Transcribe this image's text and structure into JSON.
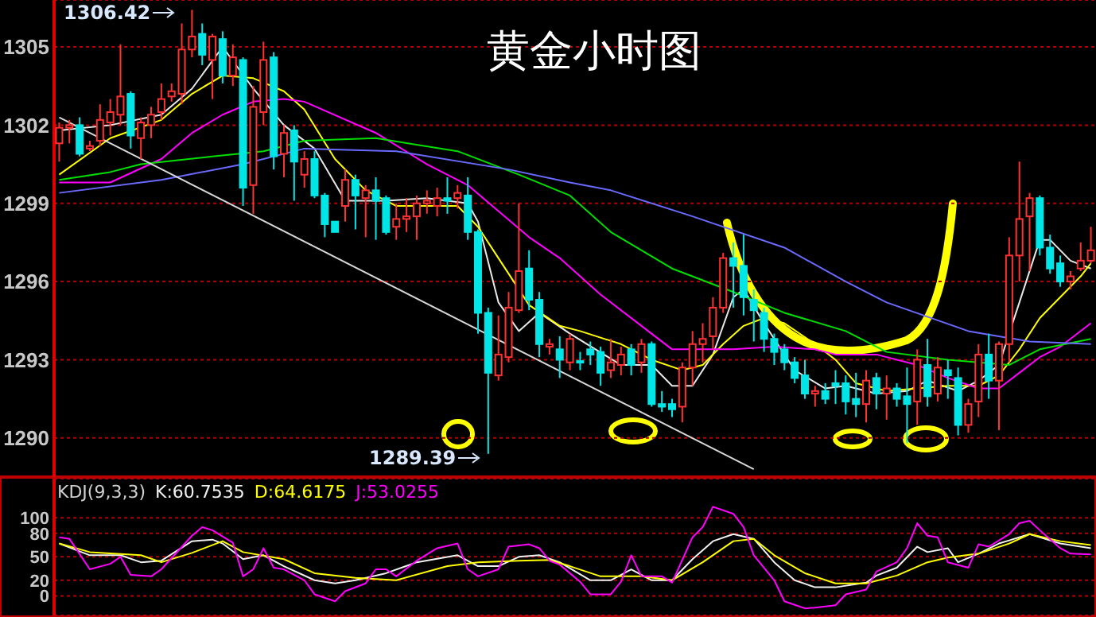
{
  "chart_data": [
    {
      "type": "candlestick",
      "title": "黄金小时图",
      "categories": [
        null,
        null,
        null,
        null,
        null,
        null,
        null,
        null,
        null,
        null,
        null,
        null,
        null,
        null,
        null,
        null,
        null,
        null,
        null,
        null,
        null,
        null,
        null,
        null,
        null,
        null,
        null,
        null,
        null,
        null,
        null,
        null,
        null,
        null,
        null,
        null,
        null,
        null,
        null,
        null,
        null,
        null,
        null,
        null,
        null,
        null,
        null,
        null,
        null,
        null,
        null,
        null,
        null,
        null,
        null,
        null,
        null,
        null,
        null,
        null,
        null,
        null,
        null,
        null,
        null,
        null,
        null,
        null,
        null,
        null,
        null,
        null,
        null,
        null,
        null,
        null,
        null,
        null,
        null,
        null,
        null,
        null,
        null,
        null,
        null,
        null,
        null,
        null,
        null,
        null,
        null,
        null,
        null,
        null,
        null,
        null,
        null,
        null,
        null,
        null,
        null,
        null
      ],
      "ohlc": [
        [
          1301.3,
          1302.1,
          1300.6,
          1301.9
        ],
        [
          1301.9,
          1302.2,
          1301.3,
          1302.0
        ],
        [
          1302.0,
          1302.3,
          1300.8,
          1300.9
        ],
        [
          1301.1,
          1301.4,
          1301.0,
          1301.2
        ],
        [
          1301.4,
          1302.8,
          1301.2,
          1302.2
        ],
        [
          1302.1,
          1303.0,
          1301.6,
          1302.5
        ],
        [
          1302.4,
          1305.1,
          1302.0,
          1303.1
        ],
        [
          1303.2,
          1303.3,
          1301.1,
          1301.6
        ],
        [
          1301.5,
          1302.3,
          1300.7,
          1302.1
        ],
        [
          1302.0,
          1302.7,
          1301.5,
          1302.4
        ],
        [
          1302.5,
          1303.6,
          1302.2,
          1303.0
        ],
        [
          1303.1,
          1303.6,
          1302.9,
          1303.3
        ],
        [
          1303.2,
          1305.9,
          1302.8,
          1304.9
        ],
        [
          1304.9,
          1306.42,
          1304.6,
          1305.4
        ],
        [
          1305.5,
          1305.9,
          1304.3,
          1304.7
        ],
        [
          1304.5,
          1305.5,
          1303.0,
          1305.4
        ],
        [
          1305.3,
          1305.6,
          1303.6,
          1303.9
        ],
        [
          1303.9,
          1305.1,
          1303.5,
          1304.6
        ],
        [
          1304.5,
          1304.6,
          1298.9,
          1299.6
        ],
        [
          1299.7,
          1303.5,
          1298.6,
          1302.7
        ],
        [
          1302.5,
          1305.2,
          1302.0,
          1304.5
        ],
        [
          1304.6,
          1304.8,
          1300.3,
          1300.8
        ],
        [
          1300.9,
          1302.0,
          1300.0,
          1301.7
        ],
        [
          1301.8,
          1302.0,
          1299.1,
          1300.6
        ],
        [
          1300.1,
          1301.0,
          1299.6,
          1300.7
        ],
        [
          1300.7,
          1301.0,
          1299.2,
          1299.3
        ],
        [
          1299.3,
          1299.4,
          1297.7,
          1298.2
        ],
        [
          1298.3,
          1298.3,
          1297.9,
          1297.9
        ],
        [
          1298.9,
          1300.3,
          1298.3,
          1299.9
        ],
        [
          1299.9,
          1300.1,
          1298.0,
          1299.3
        ],
        [
          1299.2,
          1299.7,
          1297.7,
          1299.5
        ],
        [
          1299.5,
          1300.0,
          1297.6,
          1299.1
        ],
        [
          1299.2,
          1299.3,
          1297.8,
          1297.9
        ],
        [
          1298.1,
          1299.0,
          1297.6,
          1298.4
        ],
        [
          1298.4,
          1299.2,
          1297.9,
          1298.5
        ],
        [
          1298.5,
          1299.3,
          1297.6,
          1299.0
        ],
        [
          1299.0,
          1299.5,
          1298.6,
          1299.1
        ],
        [
          1298.9,
          1299.6,
          1298.5,
          1299.2
        ],
        [
          1299.2,
          1300.0,
          1298.6,
          1299.1
        ],
        [
          1299.2,
          1299.7,
          1298.8,
          1299.4
        ],
        [
          1299.3,
          1300.0,
          1297.6,
          1297.9
        ],
        [
          1297.9,
          1298.0,
          1294.0,
          1294.8
        ],
        [
          1294.8,
          1295.0,
          1289.39,
          1292.5
        ],
        [
          1292.4,
          1294.7,
          1292.2,
          1293.2
        ],
        [
          1293.1,
          1295.6,
          1292.9,
          1295.0
        ],
        [
          1294.9,
          1299.0,
          1294.8,
          1296.4
        ],
        [
          1296.5,
          1297.2,
          1294.9,
          1295.3
        ],
        [
          1295.3,
          1295.6,
          1293.1,
          1293.6
        ],
        [
          1293.5,
          1293.8,
          1293.2,
          1293.6
        ],
        [
          1293.4,
          1293.9,
          1292.3,
          1293.0
        ],
        [
          1292.9,
          1294.0,
          1292.6,
          1293.8
        ],
        [
          1292.95,
          1293.3,
          1292.6,
          1292.9
        ],
        [
          1293.4,
          1293.7,
          1292.8,
          1293.2
        ],
        [
          1293.3,
          1293.5,
          1292.0,
          1292.5
        ],
        [
          1292.6,
          1293.8,
          1292.3,
          1292.9
        ],
        [
          1292.8,
          1293.5,
          1292.4,
          1293.2
        ],
        [
          1293.4,
          1293.6,
          1292.4,
          1292.8
        ],
        [
          1292.9,
          1293.8,
          1292.5,
          1293.6
        ],
        [
          1293.6,
          1293.7,
          1291.2,
          1291.3
        ],
        [
          1291.3,
          1291.8,
          1291.0,
          1291.2
        ],
        [
          1291.3,
          1291.5,
          1290.8,
          1291.1
        ],
        [
          1291.2,
          1292.9,
          1290.6,
          1292.7
        ],
        [
          1292.7,
          1294.1,
          1292.0,
          1293.6
        ],
        [
          1293.6,
          1294.4,
          1292.9,
          1293.8
        ],
        [
          1293.9,
          1295.4,
          1293.4,
          1295.0
        ],
        [
          1295.0,
          1297.1,
          1294.8,
          1296.9
        ],
        [
          1296.9,
          1297.5,
          1295.0,
          1296.6
        ],
        [
          1296.6,
          1297.8,
          1294.7,
          1295.4
        ],
        [
          1295.3,
          1295.7,
          1293.7,
          1294.9
        ],
        [
          1294.8,
          1295.0,
          1293.3,
          1293.8
        ],
        [
          1293.8,
          1294.0,
          1292.8,
          1293.3
        ],
        [
          1293.4,
          1293.6,
          1292.6,
          1292.9
        ],
        [
          1292.9,
          1293.1,
          1292.1,
          1292.3
        ],
        [
          1292.4,
          1293.0,
          1291.5,
          1291.7
        ],
        [
          1291.7,
          1292.0,
          1291.2,
          1291.8
        ],
        [
          1291.8,
          1292.1,
          1291.3,
          1291.5
        ],
        [
          1292.1,
          1292.6,
          1291.3,
          1292.0
        ],
        [
          1292.1,
          1292.4,
          1290.9,
          1291.4
        ],
        [
          1291.5,
          1292.5,
          1290.8,
          1291.3
        ],
        [
          1291.3,
          1292.6,
          1290.6,
          1292.2
        ],
        [
          1292.3,
          1292.5,
          1291.1,
          1291.7
        ],
        [
          1291.7,
          1292.4,
          1290.7,
          1291.9
        ],
        [
          1291.9,
          1292.1,
          1291.2,
          1291.5
        ],
        [
          1291.6,
          1292.7,
          1289.8,
          1291.3
        ],
        [
          1291.4,
          1293.4,
          1290.5,
          1293.0
        ],
        [
          1292.8,
          1293.8,
          1291.2,
          1291.6
        ],
        [
          1291.7,
          1293.1,
          1291.4,
          1292.7
        ],
        [
          1292.6,
          1293.0,
          1291.5,
          1292.4
        ],
        [
          1292.3,
          1292.7,
          1290.1,
          1290.5
        ],
        [
          1290.5,
          1291.5,
          1290.2,
          1291.3
        ],
        [
          1291.4,
          1293.6,
          1290.8,
          1293.2
        ],
        [
          1293.2,
          1294.0,
          1291.5,
          1292.2
        ],
        [
          1292.2,
          1293.7,
          1290.3,
          1293.6
        ],
        [
          1293.6,
          1297.7,
          1292.9,
          1297.0
        ],
        [
          1297.0,
          1300.6,
          1296.0,
          1298.4
        ],
        [
          1298.5,
          1299.4,
          1296.4,
          1299.2
        ],
        [
          1299.2,
          1299.3,
          1297.0,
          1297.3
        ],
        [
          1297.3,
          1297.8,
          1296.3,
          1296.5
        ],
        [
          1296.7,
          1297.0,
          1295.8,
          1296.0
        ],
        [
          1296.0,
          1296.4,
          1295.7,
          1296.2
        ],
        [
          1296.5,
          1297.5,
          1296.4,
          1296.8
        ],
        [
          1296.8,
          1298.1,
          1296.7,
          1297.2
        ]
      ],
      "colors": [
        "#ff3232",
        "#ff3232",
        "#00e5e5",
        "#ff3232",
        "#ff3232",
        "#ff3232",
        "#ff3232",
        "#00e5e5",
        "#ff3232",
        "#ff3232",
        "#ff3232",
        "#ff3232",
        "#ff3232",
        "#ff3232",
        "#00e5e5",
        "#ff3232",
        "#00e5e5",
        "#ff3232",
        "#00e5e5",
        "#ff3232",
        "#ff3232",
        "#00e5e5",
        "#ff3232",
        "#00e5e5",
        "#ff3232",
        "#00e5e5",
        "#00e5e5",
        "#00e5e5",
        "#ff3232",
        "#00e5e5",
        "#ff3232",
        "#00e5e5",
        "#00e5e5",
        "#ff3232",
        "#ff3232",
        "#ff3232",
        "#ff3232",
        "#ff3232",
        "#00e5e5",
        "#ff3232",
        "#00e5e5",
        "#00e5e5",
        "#00e5e5",
        "#ff3232",
        "#ff3232",
        "#ff3232",
        "#00e5e5",
        "#00e5e5",
        "#ff3232",
        "#00e5e5",
        "#ff3232",
        "#00e5e5",
        "#00e5e5",
        "#00e5e5",
        "#ff3232",
        "#ff3232",
        "#00e5e5",
        "#ff3232",
        "#00e5e5",
        "#00e5e5",
        "#00e5e5",
        "#ff3232",
        "#ff3232",
        "#ff3232",
        "#ff3232",
        "#ff3232",
        "#00e5e5",
        "#00e5e5",
        "#00e5e5",
        "#00e5e5",
        "#00e5e5",
        "#00e5e5",
        "#00e5e5",
        "#00e5e5",
        "#ff3232",
        "#00e5e5",
        "#00e5e5",
        "#00e5e5",
        "#00e5e5",
        "#ff3232",
        "#00e5e5",
        "#ff3232",
        "#00e5e5",
        "#00e5e5",
        "#ff3232",
        "#00e5e5",
        "#ff3232",
        "#00e5e5",
        "#00e5e5",
        "#ff3232",
        "#ff3232",
        "#00e5e5",
        "#ff3232",
        "#ff3232",
        "#ff3232",
        "#ff3232",
        "#00e5e5",
        "#00e5e5",
        "#00e5e5",
        "#ff3232",
        "#ff3232",
        "#ff3232"
      ],
      "series": [
        {
          "type": "line",
          "color": "#e8e8e8",
          "values": [
            1301.8,
            null,
            null,
            null,
            null,
            1302.0,
            null,
            null,
            null,
            null,
            1302.4,
            null,
            null,
            1303.4,
            null,
            null,
            1305.0,
            null,
            null,
            1303.4,
            null,
            null,
            1302.0,
            null,
            null,
            1301.1,
            null,
            null,
            1299.1,
            null,
            null,
            null,
            1299.1,
            null,
            null,
            null,
            1299.2,
            null,
            null,
            null,
            1299.0,
            1298.3,
            null,
            1295.2,
            null,
            1294.1,
            null,
            1294.8,
            null,
            null,
            1294.0,
            null,
            null,
            null,
            null,
            1292.8,
            null,
            null,
            1292.8,
            null,
            1292.0,
            null,
            1292.0,
            null,
            1293.2,
            null,
            1295.4,
            1295.7,
            null,
            1294.4,
            null,
            null,
            1292.6,
            null,
            null,
            1291.9,
            null,
            1292.0,
            null,
            null,
            1291.7,
            null,
            null,
            1291.8,
            null,
            1292.2,
            null,
            null,
            1291.8,
            null,
            1292.2,
            null,
            1292.8,
            null,
            1295.2,
            null,
            1297.6,
            1297.6,
            null,
            1296.8,
            null,
            1296.5
          ]
        },
        {
          "type": "line",
          "color": "#ffff00",
          "values": [
            1300.1,
            null,
            null,
            null,
            null,
            1301.5,
            null,
            null,
            null,
            null,
            1302.2,
            null,
            null,
            1303.2,
            null,
            null,
            1303.9,
            null,
            null,
            1303.8,
            null,
            null,
            1303.3,
            null,
            1302.6,
            null,
            null,
            1300.7,
            null,
            null,
            1299.5,
            null,
            null,
            1298.9,
            null,
            null,
            1298.9,
            null,
            null,
            1298.9,
            null,
            1298.1,
            null,
            1296.9,
            null,
            null,
            1295.1,
            null,
            null,
            1294.3,
            null,
            1294.1,
            null,
            null,
            null,
            1293.6,
            null,
            null,
            1293.0,
            null,
            null,
            1292.6,
            null,
            1292.8,
            null,
            1293.6,
            null,
            1294.3,
            null,
            1294.6,
            null,
            1294.4,
            null,
            null,
            1293.6,
            null,
            1293.0,
            null,
            1292.1,
            null,
            null,
            1291.8,
            null,
            null,
            1291.9,
            null,
            null,
            1292.0,
            null,
            null,
            1292.0,
            null,
            1292.4,
            null,
            1293.4,
            null,
            1294.6,
            null,
            1295.4,
            null,
            1296.2,
            1296.7
          ]
        },
        {
          "type": "line",
          "color": "#ff00ff",
          "values": [
            1299.8,
            null,
            null,
            null,
            null,
            1299.8,
            null,
            null,
            null,
            null,
            1300.7,
            null,
            null,
            1301.7,
            null,
            null,
            1302.4,
            null,
            null,
            1302.9,
            null,
            null,
            1303.0,
            null,
            1302.9,
            null,
            null,
            null,
            null,
            null,
            null,
            1301.7,
            null,
            null,
            null,
            null,
            1300.5,
            null,
            null,
            null,
            1299.7,
            null,
            null,
            1298.7,
            null,
            null,
            1297.7,
            null,
            null,
            1296.9,
            null,
            null,
            null,
            1295.5,
            null,
            null,
            null,
            1294.3,
            null,
            null,
            1293.4,
            null,
            null,
            1293.4,
            null,
            null,
            1293.4,
            null,
            null,
            null,
            1293.5,
            null,
            null,
            null,
            1293.4,
            null,
            1293.2,
            null,
            null,
            null,
            1293.2,
            null,
            null,
            null,
            1292.8,
            null,
            null,
            1292.3,
            null,
            null,
            1291.9,
            null,
            1291.9,
            null,
            1292.5,
            null,
            1293.1,
            null,
            1293.5,
            null,
            null,
            1294.4
          ]
        },
        {
          "type": "line",
          "color": "#00e000",
          "values": [
            1299.9,
            null,
            null,
            null,
            null,
            1300.2,
            null,
            null,
            1300.5,
            null,
            null,
            null,
            null,
            null,
            null,
            1300.8,
            null,
            null,
            null,
            null,
            1301.0,
            null,
            null,
            null,
            1301.4,
            null,
            null,
            null,
            null,
            null,
            null,
            1301.5,
            null,
            null,
            null,
            null,
            null,
            null,
            null,
            1301.0,
            null,
            null,
            null,
            null,
            null,
            1300.1,
            null,
            null,
            null,
            null,
            1299.3,
            null,
            null,
            null,
            1297.9,
            null,
            null,
            null,
            null,
            null,
            1296.5,
            null,
            null,
            null,
            null,
            null,
            1295.6,
            null,
            null,
            null,
            null,
            1294.8,
            null,
            null,
            null,
            null,
            null,
            1294.1,
            null,
            null,
            null,
            1293.3,
            null,
            null,
            null,
            null,
            null,
            1293.0,
            null,
            null,
            null,
            null,
            null,
            1292.8,
            null,
            null,
            1293.4,
            null,
            null,
            null,
            null,
            1293.8
          ]
        },
        {
          "type": "line",
          "color": "#6a6aff",
          "values": [
            1299.4,
            null,
            null,
            null,
            null,
            null,
            null,
            null,
            null,
            null,
            1299.9,
            null,
            null,
            null,
            null,
            null,
            null,
            null,
            1300.5,
            null,
            null,
            null,
            null,
            null,
            1301.1,
            null,
            null,
            null,
            null,
            null,
            null,
            null,
            null,
            1301.0,
            null,
            null,
            null,
            null,
            null,
            null,
            null,
            null,
            null,
            null,
            1300.3,
            null,
            null,
            null,
            null,
            null,
            1299.8,
            null,
            null,
            null,
            1299.5,
            null,
            null,
            null,
            null,
            null,
            null,
            null,
            1298.5,
            null,
            null,
            null,
            null,
            null,
            null,
            null,
            null,
            1297.3,
            null,
            null,
            null,
            null,
            null,
            1296.0,
            null,
            null,
            null,
            1295.2,
            null,
            null,
            null,
            null,
            null,
            null,
            null,
            1294.1,
            null,
            null,
            null,
            null,
            null,
            1293.7,
            null,
            null,
            null,
            null,
            null,
            1293.6
          ]
        },
        {
          "type": "line",
          "color": "#d8d8d8",
          "values": [
            1302.3,
            null,
            null,
            null,
            null,
            null,
            null,
            null,
            null,
            null,
            null,
            null,
            null,
            null,
            null,
            null,
            null,
            null,
            null,
            null,
            null,
            null,
            null,
            null,
            null,
            null,
            null,
            null,
            null,
            null,
            null,
            null,
            null,
            null,
            null,
            null,
            null,
            null,
            null,
            null,
            null,
            null,
            null,
            null,
            null,
            null,
            null,
            null,
            null,
            null,
            null,
            null,
            null,
            null,
            null,
            null,
            null,
            null,
            null,
            null,
            null,
            null,
            null,
            null,
            null,
            null,
            null,
            null,
            1288.8,
            null,
            null,
            null,
            null,
            null,
            null,
            null,
            null,
            null,
            null,
            null,
            null,
            null,
            null,
            null,
            null,
            null,
            null,
            null,
            null,
            null,
            null,
            null,
            null,
            null,
            null,
            null,
            null,
            null,
            null,
            null,
            null,
            null
          ]
        }
      ],
      "annotations": [
        "1306.42",
        "1289.39"
      ],
      "ylim": [
        1288.5,
        1306.8
      ],
      "yticks": [
        1290,
        1293,
        1296,
        1299,
        1302,
        1305
      ],
      "grid": "y",
      "marker": "none",
      "legend": false
    },
    {
      "type": "line",
      "title": "KDJ(9,3,3)",
      "categories": [
        null,
        null,
        null,
        null,
        null,
        null,
        null,
        null,
        null,
        null,
        null,
        null,
        null,
        null,
        null,
        null,
        null,
        null,
        null,
        null,
        null,
        null,
        null,
        null,
        null,
        null,
        null,
        null,
        null,
        null,
        null,
        null,
        null,
        null,
        null,
        null,
        null,
        null,
        null,
        null,
        null,
        null,
        null,
        null,
        null,
        null,
        null,
        null,
        null,
        null,
        null,
        null,
        null,
        null,
        null,
        null,
        null,
        null,
        null,
        null,
        null,
        null,
        null,
        null,
        null,
        null,
        null,
        null,
        null,
        null,
        null,
        null,
        null,
        null,
        null,
        null,
        null,
        null,
        null,
        null,
        null,
        null,
        null,
        null,
        null,
        null,
        null,
        null,
        null,
        null,
        null,
        null,
        null,
        null,
        null,
        null,
        null,
        null,
        null,
        null,
        null,
        null
      ],
      "series": [
        {
          "name": "K:60.7535",
          "color": "#f0f0f0",
          "values": [
            67,
            null,
            null,
            52,
            null,
            null,
            52,
            null,
            43,
            null,
            45,
            null,
            null,
            70,
            null,
            72,
            67,
            null,
            47,
            null,
            52,
            null,
            38,
            null,
            null,
            20,
            null,
            16,
            null,
            20,
            null,
            null,
            29,
            null,
            null,
            43,
            null,
            null,
            null,
            52,
            null,
            38,
            null,
            38,
            null,
            50,
            null,
            52,
            null,
            43,
            null,
            null,
            20,
            null,
            20,
            null,
            34,
            null,
            20,
            null,
            20,
            null,
            47,
            null,
            70,
            null,
            79,
            null,
            73,
            null,
            43,
            null,
            20,
            null,
            11,
            null,
            11,
            null,
            null,
            17,
            26,
            null,
            36,
            null,
            63,
            56,
            null,
            61,
            43,
            null,
            54,
            null,
            67,
            null,
            null,
            79,
            null,
            null,
            67,
            null,
            null,
            61
          ]
        },
        {
          "name": "D:64.6175",
          "color": "#ffff00",
          "values": [
            67,
            null,
            null,
            56,
            null,
            null,
            null,
            null,
            52,
            null,
            43,
            null,
            null,
            55,
            null,
            null,
            70,
            null,
            56,
            null,
            null,
            null,
            47,
            null,
            null,
            29,
            null,
            null,
            null,
            23,
            null,
            null,
            null,
            20,
            null,
            null,
            null,
            null,
            38,
            null,
            null,
            43,
            null,
            null,
            null,
            45,
            null,
            null,
            46,
            null,
            38,
            null,
            null,
            25,
            null,
            null,
            null,
            25,
            null,
            null,
            20,
            null,
            null,
            43,
            null,
            null,
            70,
            null,
            73,
            null,
            52,
            null,
            null,
            29,
            null,
            null,
            16,
            null,
            null,
            16,
            null,
            null,
            26,
            null,
            null,
            43,
            null,
            49,
            null,
            null,
            54,
            null,
            null,
            67,
            null,
            79,
            null,
            null,
            70,
            null,
            null,
            65
          ]
        },
        {
          "name": "J:53.0255",
          "color": "#ff00ff",
          "values": [
            75,
            73,
            null,
            34,
            null,
            41,
            50,
            27,
            null,
            25,
            34,
            null,
            null,
            77,
            88,
            84,
            null,
            68,
            25,
            34,
            61,
            36,
            34,
            null,
            20,
            2,
            null,
            -7,
            6,
            null,
            16,
            34,
            34,
            25,
            null,
            45,
            null,
            61,
            null,
            67,
            34,
            25,
            null,
            34,
            63,
            null,
            66,
            61,
            45,
            40,
            null,
            18,
            2,
            null,
            2,
            18,
            52,
            25,
            null,
            25,
            17,
            null,
            75,
            88,
            114,
            null,
            105,
            88,
            52,
            null,
            20,
            -7,
            null,
            -16,
            -15,
            null,
            -12,
            2,
            null,
            8,
            31,
            null,
            43,
            61,
            93,
            77,
            75,
            43,
            null,
            36,
            66,
            63,
            null,
            79,
            93,
            96,
            84,
            null,
            61,
            54,
            null,
            53
          ]
        }
      ],
      "ylim": [
        -25,
        150
      ],
      "yticks": [
        0,
        20,
        50,
        80,
        100
      ],
      "grid": "y",
      "marker": "none",
      "legend": "top left"
    }
  ]
}
